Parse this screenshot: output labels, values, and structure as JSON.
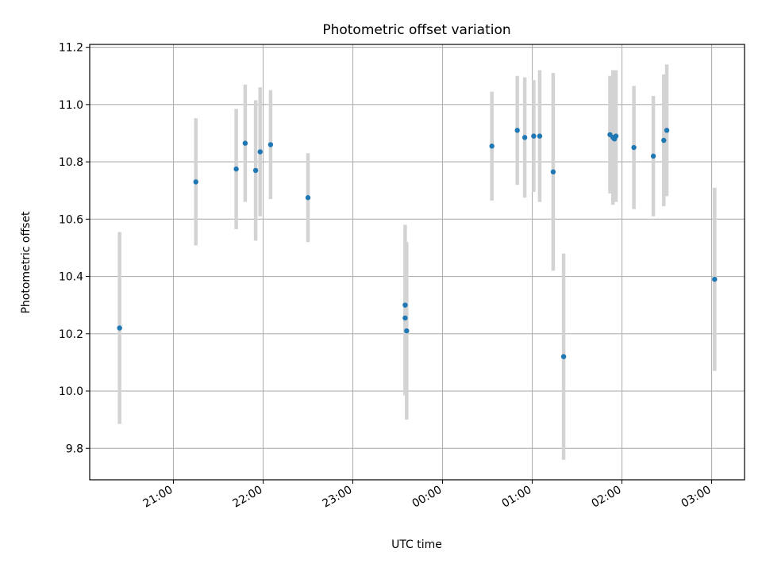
{
  "chart_data": {
    "type": "scatter",
    "title": "Photometric offset variation",
    "xlabel": "UTC time",
    "ylabel": "Photometric offset",
    "xlim": [
      "20:04",
      "03:22"
    ],
    "ylim": [
      9.69,
      11.21
    ],
    "grid": true,
    "x_ticks": [
      "21:00",
      "22:00",
      "23:00",
      "00:00",
      "01:00",
      "02:00",
      "03:00"
    ],
    "y_ticks": [
      9.8,
      10.0,
      10.2,
      10.4,
      10.6,
      10.8,
      11.0,
      11.2
    ],
    "y_tick_labels": [
      "9.8",
      "10.0",
      "10.2",
      "10.4",
      "10.6",
      "10.8",
      "11.0",
      "11.2"
    ],
    "marker_color": "#1f77b4",
    "errorbar_color": "#d3d3d3",
    "points": [
      {
        "t": "20:24",
        "y": 10.22,
        "err": 0.335
      },
      {
        "t": "21:15",
        "y": 10.73,
        "err": 0.222
      },
      {
        "t": "21:42",
        "y": 10.775,
        "err": 0.21
      },
      {
        "t": "21:48",
        "y": 10.865,
        "err": 0.205
      },
      {
        "t": "21:55",
        "y": 10.77,
        "err": 0.245
      },
      {
        "t": "21:58",
        "y": 10.835,
        "err": 0.225
      },
      {
        "t": "22:05",
        "y": 10.86,
        "err": 0.19
      },
      {
        "t": "22:30",
        "y": 10.675,
        "err": 0.155
      },
      {
        "t": "23:35",
        "y": 10.3,
        "err": 0.28
      },
      {
        "t": "23:35",
        "y": 10.255,
        "err": 0.27
      },
      {
        "t": "23:36",
        "y": 10.21,
        "err": 0.31
      },
      {
        "t": "00:33",
        "y": 10.855,
        "err": 0.19
      },
      {
        "t": "00:50",
        "y": 10.91,
        "err": 0.19
      },
      {
        "t": "00:55",
        "y": 10.885,
        "err": 0.21
      },
      {
        "t": "01:01",
        "y": 10.89,
        "err": 0.195
      },
      {
        "t": "01:05",
        "y": 10.89,
        "err": 0.23
      },
      {
        "t": "01:14",
        "y": 10.765,
        "err": 0.345
      },
      {
        "t": "01:21",
        "y": 10.12,
        "err": 0.36
      },
      {
        "t": "01:52",
        "y": 10.895,
        "err": 0.205
      },
      {
        "t": "01:54",
        "y": 10.885,
        "err": 0.235
      },
      {
        "t": "01:55",
        "y": 10.88,
        "err": 0.21
      },
      {
        "t": "01:56",
        "y": 10.89,
        "err": 0.23
      },
      {
        "t": "02:08",
        "y": 10.85,
        "err": 0.215
      },
      {
        "t": "02:21",
        "y": 10.82,
        "err": 0.21
      },
      {
        "t": "02:28",
        "y": 10.875,
        "err": 0.23
      },
      {
        "t": "02:30",
        "y": 10.91,
        "err": 0.23
      },
      {
        "t": "03:02",
        "y": 10.39,
        "err": 0.32
      }
    ]
  }
}
